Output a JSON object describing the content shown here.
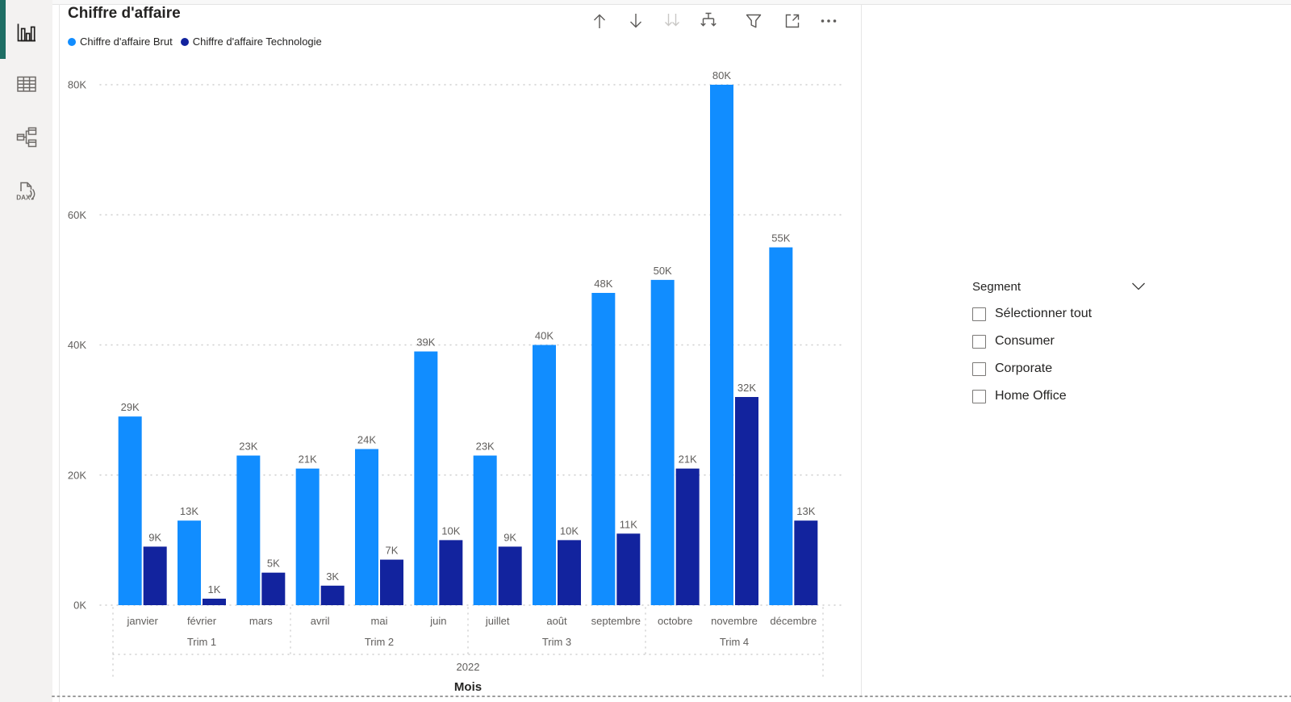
{
  "sidebar": {
    "items": [
      {
        "id": "report-view",
        "active": true
      },
      {
        "id": "table-view",
        "active": false
      },
      {
        "id": "model-view",
        "active": false
      },
      {
        "id": "dax-query-view",
        "active": false
      }
    ]
  },
  "visual": {
    "title": "Chiffre d'affaire",
    "toolbar": [
      "drill-up",
      "drill-down",
      "drill-down-next-level",
      "expand-all-down-one-level",
      "filter",
      "focus-mode",
      "more-options"
    ]
  },
  "chart_data": {
    "type": "bar",
    "title": "Chiffre d'affaire",
    "categories": [
      "janvier",
      "février",
      "mars",
      "avril",
      "mai",
      "juin",
      "juillet",
      "août",
      "septembre",
      "octobre",
      "novembre",
      "décembre"
    ],
    "series": [
      {
        "name": "Chiffre d'affaire Brut",
        "color": "#118DFF",
        "values": [
          29000,
          13000,
          23000,
          21000,
          24000,
          39000,
          23000,
          40000,
          48000,
          50000,
          80000,
          55000
        ],
        "labels": [
          "29K",
          "13K",
          "23K",
          "21K",
          "24K",
          "39K",
          "23K",
          "40K",
          "48K",
          "50K",
          "80K",
          "55K"
        ]
      },
      {
        "name": "Chiffre d'affaire Technologie",
        "color": "#12239E",
        "values": [
          9000,
          1000,
          5000,
          3000,
          7000,
          10000,
          9000,
          10000,
          11000,
          21000,
          32000,
          13000
        ],
        "labels": [
          "9K",
          "1K",
          "5K",
          "3K",
          "7K",
          "10K",
          "9K",
          "10K",
          "11K",
          "21K",
          "32K",
          "13K"
        ]
      }
    ],
    "y_ticks": [
      {
        "label": "0K",
        "value": 0
      },
      {
        "label": "20K",
        "value": 20000
      },
      {
        "label": "40K",
        "value": 40000
      },
      {
        "label": "60K",
        "value": 60000
      },
      {
        "label": "80K",
        "value": 80000
      }
    ],
    "ylim": [
      0,
      80000
    ],
    "grid": true,
    "legend_position": "top-left",
    "quarters": [
      {
        "label": "Trim 1",
        "from": 0,
        "to": 2
      },
      {
        "label": "Trim 2",
        "from": 3,
        "to": 5
      },
      {
        "label": "Trim 3",
        "from": 6,
        "to": 8
      },
      {
        "label": "Trim 4",
        "from": 9,
        "to": 11
      }
    ],
    "year_label": "2022",
    "xlabel": "Mois"
  },
  "slicer": {
    "header": "Segment",
    "items": [
      {
        "label": "Sélectionner tout",
        "checked": false
      },
      {
        "label": "Consumer",
        "checked": false
      },
      {
        "label": "Corporate",
        "checked": false
      },
      {
        "label": "Home Office",
        "checked": false
      }
    ]
  },
  "colors": {
    "accent_light": "#118DFF",
    "accent_dark": "#12239E",
    "active_view_indicator": "#1E6E64",
    "label_gray": "#605E5C",
    "text_dark": "#252423"
  }
}
